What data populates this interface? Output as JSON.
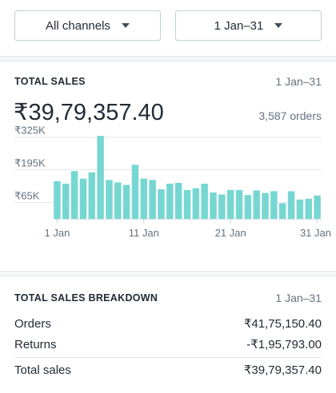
{
  "filters": {
    "channel": "All channels",
    "date_range": "1 Jan–31"
  },
  "total_sales": {
    "title": "TOTAL SALES",
    "date_range": "1 Jan–31",
    "amount": "₹39,79,357.40",
    "orders": "3,587 orders"
  },
  "chart_data": {
    "type": "bar",
    "title": "",
    "xlabel": "",
    "ylabel": "",
    "bar_color": "#76d7d2",
    "grid": true,
    "ylim": [
      0,
      340000
    ],
    "y_ticks": [
      {
        "value": 65000,
        "label": "₹65K"
      },
      {
        "value": 195000,
        "label": "₹195K"
      },
      {
        "value": 325000,
        "label": "₹325K"
      }
    ],
    "x_tick_labels": [
      {
        "day": 1,
        "label": "1 Jan"
      },
      {
        "day": 11,
        "label": "11 Jan"
      },
      {
        "day": 21,
        "label": "21 Jan"
      },
      {
        "day": 31,
        "label": "31 Jan"
      }
    ],
    "categories": [
      "1",
      "2",
      "3",
      "4",
      "5",
      "6",
      "7",
      "8",
      "9",
      "10",
      "11",
      "12",
      "13",
      "14",
      "15",
      "16",
      "17",
      "18",
      "19",
      "20",
      "21",
      "22",
      "23",
      "24",
      "25",
      "26",
      "27",
      "28",
      "29",
      "30",
      "31"
    ],
    "values": [
      150000,
      140000,
      190000,
      160000,
      185000,
      330000,
      155000,
      145000,
      135000,
      215000,
      160000,
      155000,
      118000,
      140000,
      143000,
      115000,
      122000,
      140000,
      105000,
      97000,
      115000,
      115000,
      95000,
      113000,
      103000,
      110000,
      62000,
      110000,
      77000,
      80000,
      93000
    ]
  },
  "breakdown": {
    "title": "TOTAL SALES BREAKDOWN",
    "date_range": "1 Jan–31",
    "rows": [
      {
        "label": "Orders",
        "value": "₹41,75,150.40"
      },
      {
        "label": "Returns",
        "value": "-₹1,95,793.00"
      }
    ],
    "total": {
      "label": "Total sales",
      "value": "₹39,79,357.40"
    }
  }
}
